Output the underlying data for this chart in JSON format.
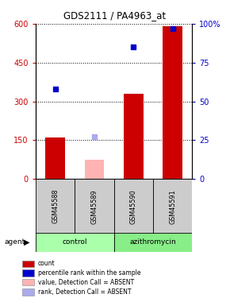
{
  "title": "GDS2111 / PA4963_at",
  "samples": [
    "GSM45588",
    "GSM45589",
    "GSM45590",
    "GSM45591"
  ],
  "bar_values": [
    160,
    null,
    330,
    590
  ],
  "bar_absent_values": [
    null,
    75,
    null,
    null
  ],
  "dot_values": [
    58,
    null,
    85,
    97
  ],
  "dot_absent_values": [
    null,
    27,
    null,
    null
  ],
  "bar_color": "#cc0000",
  "bar_absent_color": "#ffb3b3",
  "dot_color": "#0000cc",
  "dot_absent_color": "#aaaaee",
  "ylim_left": [
    0,
    600
  ],
  "ylim_right": [
    0,
    100
  ],
  "yticks_left": [
    0,
    150,
    300,
    450,
    600
  ],
  "yticks_right": [
    0,
    25,
    50,
    75,
    100
  ],
  "ytick_labels_right": [
    "0",
    "25",
    "50",
    "75",
    "100%"
  ],
  "group_color_control": "#aaffaa",
  "group_color_azithromycin": "#88ee88",
  "bg_color_samples": "#cccccc",
  "legend_items": [
    {
      "label": "count",
      "color": "#cc0000"
    },
    {
      "label": "percentile rank within the sample",
      "color": "#0000cc"
    },
    {
      "label": "value, Detection Call = ABSENT",
      "color": "#ffb3b3"
    },
    {
      "label": "rank, Detection Call = ABSENT",
      "color": "#aaaaee"
    }
  ]
}
